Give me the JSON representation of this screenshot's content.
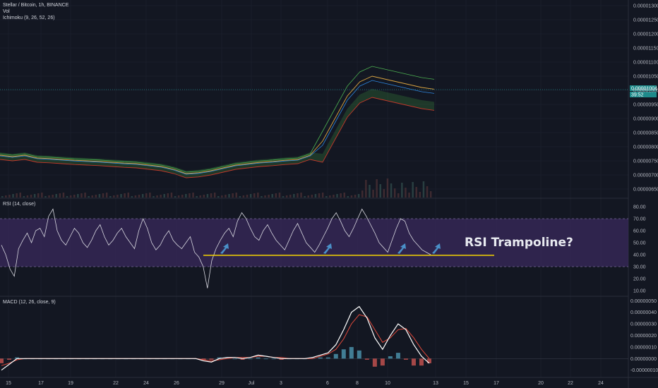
{
  "header": {
    "title": "Stellar / Bitcoin, 1h, BINANCE",
    "vol_label": "Vol",
    "ichimoku_label": "Ichimoku (9, 26, 52, 26)",
    "rsi_label": "RSI (14, close)",
    "macd_label": "MACD (12, 26, close, 9)"
  },
  "price_badges": {
    "last_price": "0.00001004",
    "countdown": "39:52"
  },
  "annotation": "RSI Trampoline?",
  "colors": {
    "background": "#131722",
    "grid": "#1e2230",
    "rsi_band": "#3a2a5c",
    "rsi_line": "#d8d8e0",
    "support_line": "#f5d400",
    "macd_line": "#ffffff",
    "signal_line": "#e0493b",
    "hist_pos": "#4a8fa8",
    "hist_neg": "#c0504d",
    "arrow": "#4a90c8",
    "price_badge": "#1e8a8a",
    "cloud_green": "#3d8f3d",
    "kijun_red": "#c0392b",
    "tenkan_blue": "#2e86de"
  },
  "chart_data": [
    {
      "type": "line",
      "title": "Stellar / Bitcoin, 1h, BINANCE",
      "y_ticks": [
        "0.00001300",
        "0.00001250",
        "0.00001200",
        "0.00001150",
        "0.00001100",
        "0.00001050",
        "0.00001000",
        "0.00000950",
        "0.00000900",
        "0.00000850",
        "0.00000800",
        "0.00000750",
        "0.00000700",
        "0.00000650"
      ],
      "x_ticks": [
        "15",
        "17",
        "19",
        "22",
        "24",
        "26",
        "29",
        "Jul",
        "3",
        "6",
        "8",
        "10",
        "13",
        "15",
        "17",
        "20",
        "22",
        "24"
      ],
      "series": [
        {
          "values": [
            7.7e-06,
            7.65e-06,
            7.7e-06,
            7.6e-06,
            7.58e-06,
            7.55e-06,
            7.52e-06,
            7.5e-06,
            7.48e-06,
            7.45e-06,
            7.42e-06,
            7.4e-06,
            7.35e-06,
            7.3e-06,
            7.2e-06,
            7.05e-06,
            7.08e-06,
            7.15e-06,
            7.25e-06,
            7.35e-06,
            7.4e-06,
            7.45e-06,
            7.48e-06,
            7.52e-06,
            7.55e-06,
            7.7e-06,
            8.2e-06,
            9e-06,
            9.8e-06,
            1.03e-05,
            1.05e-05,
            1.04e-05,
            1.03e-05,
            1.02e-05,
            1.01e-05,
            1.004e-05
          ]
        }
      ]
    },
    {
      "type": "line",
      "title": "RSI (14, close)",
      "y_ticks": [
        "80.00",
        "70.00",
        "60.00",
        "50.00",
        "40.00",
        "30.00",
        "20.00",
        "10.00"
      ],
      "ylim": [
        5,
        85
      ],
      "band": [
        30,
        70
      ],
      "support_level": 39.5,
      "series": [
        {
          "values": [
            48,
            40,
            28,
            22,
            45,
            52,
            58,
            50,
            60,
            62,
            55,
            72,
            78,
            60,
            52,
            48,
            55,
            62,
            58,
            50,
            46,
            52,
            60,
            65,
            55,
            48,
            52,
            58,
            62,
            55,
            50,
            45,
            60,
            70,
            62,
            50,
            44,
            48,
            55,
            60,
            52,
            48,
            45,
            50,
            55,
            42,
            38,
            30,
            12,
            35,
            45,
            52,
            58,
            62,
            55,
            68,
            75,
            70,
            62,
            55,
            52,
            60,
            65,
            58,
            52,
            48,
            44,
            52,
            60,
            66,
            58,
            50,
            46,
            42,
            48,
            55,
            62,
            70,
            75,
            68,
            60,
            55,
            62,
            70,
            78,
            72,
            65,
            58,
            50,
            46,
            42,
            52,
            62,
            70,
            68,
            58,
            52,
            48,
            44,
            42,
            40
          ]
        }
      ]
    },
    {
      "type": "line",
      "title": "MACD (12, 26, close, 9)",
      "y_ticks": [
        "0.00000050",
        "0.00000040",
        "0.00000030",
        "0.00000020",
        "0.00000010",
        "0.00000000",
        "-0.00000010"
      ],
      "ylim": [
        -1.2e-07,
        5.2e-07
      ],
      "series": [
        {
          "name": "MACD",
          "values": [
            -1e-07,
            -5e-08,
            0,
            0,
            0,
            0,
            0,
            0,
            0,
            0,
            0,
            0,
            0,
            0,
            0,
            0,
            0,
            0,
            0,
            0,
            0,
            0,
            0,
            0,
            0,
            0,
            -2e-08,
            -3e-08,
            0,
            1e-08,
            1e-08,
            0,
            1e-08,
            3e-08,
            2e-08,
            1e-08,
            0,
            0,
            0,
            0,
            1e-08,
            3e-08,
            5e-08,
            1.2e-07,
            2.5e-07,
            4e-07,
            4.5e-07,
            3.5e-07,
            1.8e-07,
            8e-08,
            2e-07,
            3e-07,
            2.5e-07,
            1.2e-07,
            2e-08,
            -4e-08
          ]
        },
        {
          "name": "Signal",
          "values": [
            -6e-08,
            -4e-08,
            -1e-08,
            0,
            0,
            0,
            0,
            0,
            0,
            0,
            0,
            0,
            0,
            0,
            0,
            0,
            0,
            0,
            0,
            0,
            0,
            0,
            0,
            0,
            0,
            0,
            -1e-08,
            -2e-08,
            -1e-08,
            0,
            1e-08,
            1e-08,
            1e-08,
            2e-08,
            2e-08,
            1e-08,
            1e-08,
            0,
            0,
            0,
            0,
            2e-08,
            4e-08,
            8e-08,
            1.7e-07,
            3e-07,
            3.8e-07,
            3.6e-07,
            2.5e-07,
            1.4e-07,
            1.8e-07,
            2.5e-07,
            2.6e-07,
            1.8e-07,
            8e-08,
            0
          ]
        }
      ]
    }
  ]
}
